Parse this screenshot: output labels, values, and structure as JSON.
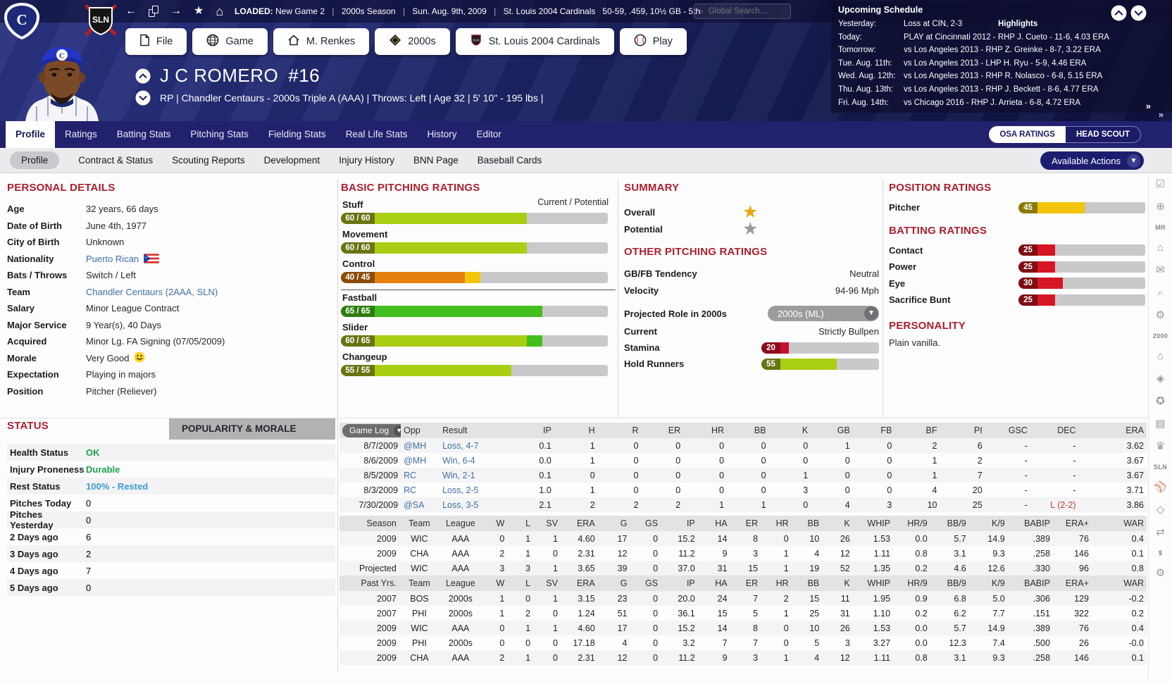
{
  "topbar": {
    "loaded_label": "LOADED:",
    "loaded_value": "New Game 2",
    "sep": "|",
    "season": "2000s  Season",
    "date": "Sun. Aug. 9th, 2009",
    "team": "St. Louis 2004 Cardinals",
    "record": "50-59, .459, 10½ GB - 5th",
    "search_placeholder": "Global Search..."
  },
  "schedule": {
    "title": "Upcoming Schedule",
    "highlights_label": "Highlights",
    "rows": [
      {
        "label": "Yesterday:",
        "text": "Loss at CIN, 2-3",
        "highlights": true
      },
      {
        "label": "Today:",
        "text": "PLAY at Cincinnati 2012 - RHP J. Cueto - 11-6, 4.03 ERA"
      },
      {
        "label": "Tomorrow:",
        "text": "vs Los Angeles 2013 - RHP Z. Greinke - 8-7, 3.22 ERA"
      },
      {
        "label": "Tue. Aug. 11th:",
        "text": "vs Los Angeles 2013 - LHP H. Ryu - 5-9, 4.46 ERA"
      },
      {
        "label": "Wed. Aug. 12th:",
        "text": "vs Los Angeles 2013 - RHP R. Nolasco - 6-8, 5.15 ERA"
      },
      {
        "label": "Thu. Aug. 13th:",
        "text": "vs Los Angeles 2013 - RHP J. Beckett - 8-6, 4.77 ERA"
      },
      {
        "label": "Fri. Aug. 14th:",
        "text": "vs Chicago 2016 - RHP J. Arrieta - 6-8, 4.72 ERA"
      }
    ]
  },
  "breadcrumbs": [
    {
      "label": "File",
      "icon": "file"
    },
    {
      "label": "Game",
      "icon": "globe"
    },
    {
      "label": "M. Renkes",
      "icon": "home"
    },
    {
      "label": "2000s",
      "icon": "league"
    },
    {
      "label": "St. Louis 2004 Cardinals",
      "icon": "team"
    },
    {
      "label": "Play",
      "icon": "play"
    }
  ],
  "player": {
    "name": "J C ROMERO",
    "number": "#16",
    "info": "RP | Chandler Centaurs - 2000s  Triple A (AAA)  |  Throws: Left  |  Age 32  |  5' 10\" - 195 lbs  |"
  },
  "tabs": {
    "main": [
      "Profile",
      "Ratings",
      "Batting Stats",
      "Pitching Stats",
      "Fielding Stats",
      "Real Life Stats",
      "History",
      "Editor"
    ],
    "active_main": "Profile",
    "scout_toggle": [
      "OSA RATINGS",
      "HEAD SCOUT"
    ],
    "active_scout": "OSA RATINGS",
    "sub": [
      "Profile",
      "Contract & Status",
      "Scouting Reports",
      "Development",
      "Injury History",
      "BNN Page",
      "Baseball Cards"
    ],
    "active_sub": "Profile",
    "actions_label": "Available Actions"
  },
  "personal": {
    "title": "PERSONAL DETAILS",
    "rows": [
      {
        "label": "Age",
        "value": "32 years, 66 days"
      },
      {
        "label": "Date of Birth",
        "value": "June 4th, 1977"
      },
      {
        "label": "City of Birth",
        "value": "Unknown"
      },
      {
        "label": "Nationality",
        "value": "Puerto Rican",
        "style": "link",
        "flag": true
      },
      {
        "label": "Bats / Throws",
        "value": "Switch / Left"
      },
      {
        "label": "Team",
        "value": "Chandler Centaurs (2AAA, SLN)",
        "style": "link"
      },
      {
        "label": "Salary",
        "value": "Minor League Contract"
      },
      {
        "label": "Major Service",
        "value": "9 Year(s), 40 Days"
      },
      {
        "label": "Acquired",
        "value": "Minor Lg. FA Signing (07/05/2009)"
      },
      {
        "label": "Morale",
        "value": "Very Good",
        "smiley": true
      },
      {
        "label": "Expectation",
        "value": "Playing in majors"
      },
      {
        "label": "Position",
        "value": "Pitcher (Reliever)"
      }
    ]
  },
  "pitching": {
    "title": "BASIC PITCHING RATINGS",
    "scale_label": "Current / Potential",
    "bars": [
      {
        "label": "Stuff",
        "badge": "60 / 60",
        "current": 60,
        "potential": 60,
        "fill": "#a8cf13",
        "pot_fill": "#a8cf13",
        "badge_color": "#6a7413"
      },
      {
        "label": "Movement",
        "badge": "60 / 60",
        "current": 60,
        "potential": 60,
        "fill": "#a8cf13",
        "pot_fill": "#a8cf13",
        "badge_color": "#6a7413"
      },
      {
        "label": "Control",
        "badge": "40 / 45",
        "current": 40,
        "potential": 45,
        "fill": "#e4820f",
        "pot_fill": "#f2c40c",
        "badge_color": "#8a4d0a",
        "divider_after": true
      },
      {
        "label": "Fastball",
        "badge": "65 / 65",
        "current": 65,
        "potential": 65,
        "fill": "#43bf1d",
        "pot_fill": "#43bf1d",
        "badge_color": "#2f7d10"
      },
      {
        "label": "Slider",
        "badge": "60 / 65",
        "current": 60,
        "potential": 65,
        "fill": "#a8cf13",
        "pot_fill": "#43bf1d",
        "badge_color": "#6a7413"
      },
      {
        "label": "Changeup",
        "badge": "55 / 55",
        "current": 55,
        "potential": 55,
        "fill": "#a8cf13",
        "pot_fill": "#a8cf13",
        "badge_color": "#6a7413"
      }
    ]
  },
  "summary": {
    "title": "SUMMARY",
    "overall_label": "Overall",
    "potential_label": "Potential",
    "overall_stars": 1,
    "potential_stars": 1,
    "star_gold": "#e8a712",
    "star_gray": "#9a9a9a",
    "other_title": "OTHER PITCHING RATINGS",
    "rows": [
      {
        "label": "GB/FB Tendency",
        "value": "Neutral"
      },
      {
        "label": "Velocity",
        "value": "94-96 Mph"
      }
    ],
    "projected_label": "Projected Role in 2000s",
    "projected_value": "2000s  (ML)",
    "current_label": "Current",
    "current_value": "Strictly Bullpen",
    "bars": [
      {
        "label": "Stamina",
        "badge": "20",
        "current": 20,
        "potential": 20,
        "fill": "#c8102e",
        "pot_fill": "#c8102e",
        "badge_color": "#8c0c1c"
      },
      {
        "label": "Hold Runners",
        "badge": "55",
        "current": 55,
        "potential": 55,
        "fill": "#a8cf13",
        "pot_fill": "#a8cf13",
        "badge_color": "#6a7413"
      }
    ]
  },
  "position": {
    "title": "POSITION RATINGS",
    "bars": [
      {
        "label": "Pitcher",
        "badge": "45",
        "current": 45,
        "potential": 45,
        "fill": "#f2c40c",
        "pot_fill": "#f2c40c",
        "badge_color": "#8a7a0a"
      }
    ]
  },
  "batting": {
    "title": "BATTING RATINGS",
    "bars": [
      {
        "label": "Contact",
        "badge": "25",
        "current": 25,
        "potential": 25,
        "fill": "#d61624",
        "pot_fill": "#d61624",
        "badge_color": "#7e0d14"
      },
      {
        "label": "Power",
        "badge": "25",
        "current": 25,
        "potential": 25,
        "fill": "#d61624",
        "pot_fill": "#d61624",
        "badge_color": "#7e0d14"
      },
      {
        "label": "Eye",
        "badge": "30",
        "current": 30,
        "potential": 30,
        "fill": "#d61624",
        "pot_fill": "#d61624",
        "badge_color": "#7e0d14"
      },
      {
        "label": "Sacrifice Bunt",
        "badge": "25",
        "current": 25,
        "potential": 25,
        "fill": "#d61624",
        "pot_fill": "#d61624",
        "badge_color": "#7e0d14"
      }
    ]
  },
  "personality": {
    "title": "PERSONALITY",
    "text": "Plain vanilla."
  },
  "status": {
    "title": "STATUS",
    "morale_tab": "POPULARITY & MORALE",
    "rows": [
      {
        "label": "Health Status",
        "value": "OK",
        "style": "green"
      },
      {
        "label": "Injury Proneness",
        "value": "Durable",
        "style": "green"
      },
      {
        "label": "Rest Status",
        "value": "100% - Rested",
        "style": "blue"
      },
      {
        "label": "Pitches Today",
        "value": "0"
      },
      {
        "label": "Pitches Yesterday",
        "value": "0"
      },
      {
        "label": "2 Days ago",
        "value": "6"
      },
      {
        "label": "3 Days ago",
        "value": "2"
      },
      {
        "label": "4 Days ago",
        "value": "7"
      },
      {
        "label": "5 Days ago",
        "value": "0"
      }
    ]
  },
  "gamelog": {
    "dropdown_label": "Game Log",
    "headers": [
      "",
      "Opp",
      "Result",
      "IP",
      "H",
      "R",
      "ER",
      "HR",
      "BB",
      "K",
      "GB",
      "FB",
      "BF",
      "PI",
      "GSC",
      "DEC",
      "ERA"
    ],
    "rows": [
      [
        "8/7/2009",
        "@MH",
        "Loss, 4-7",
        "0.1",
        "1",
        "0",
        "0",
        "0",
        "0",
        "0",
        "1",
        "0",
        "2",
        "6",
        "-",
        "-",
        "3.62"
      ],
      [
        "8/6/2009",
        "@MH",
        "Win, 6-4",
        "0.0",
        "1",
        "0",
        "0",
        "0",
        "0",
        "0",
        "0",
        "0",
        "1",
        "2",
        "-",
        "-",
        "3.67"
      ],
      [
        "8/5/2009",
        "RC",
        "Win, 2-1",
        "0.1",
        "0",
        "0",
        "0",
        "0",
        "0",
        "1",
        "0",
        "0",
        "1",
        "7",
        "-",
        "-",
        "3.67"
      ],
      [
        "8/3/2009",
        "RC",
        "Loss, 2-5",
        "1.0",
        "1",
        "0",
        "0",
        "0",
        "0",
        "3",
        "0",
        "0",
        "4",
        "20",
        "-",
        "-",
        "3.71"
      ],
      [
        "7/30/2009",
        "@SA",
        "Loss, 3-5",
        "2.1",
        "2",
        "2",
        "2",
        "1",
        "1",
        "0",
        "4",
        "3",
        "10",
        "25",
        "-",
        "L (2-2)",
        "3.86"
      ]
    ]
  },
  "season_stats": {
    "headers": [
      "Season",
      "Team",
      "League",
      "W",
      "L",
      "SV",
      "ERA",
      "G",
      "GS",
      "IP",
      "HA",
      "ER",
      "HR",
      "BB",
      "K",
      "WHIP",
      "HR/9",
      "BB/9",
      "K/9",
      "BABIP",
      "ERA+",
      "WAR"
    ],
    "rows": [
      [
        "2009",
        "WIC",
        "AAA",
        "0",
        "1",
        "1",
        "4.60",
        "17",
        "0",
        "15.2",
        "14",
        "8",
        "0",
        "10",
        "26",
        "1.53",
        "0.0",
        "5.7",
        "14.9",
        ".389",
        "76",
        "0.4"
      ],
      [
        "2009",
        "CHA",
        "AAA",
        "2",
        "1",
        "0",
        "2.31",
        "12",
        "0",
        "11.2",
        "9",
        "3",
        "1",
        "4",
        "12",
        "1.11",
        "0.8",
        "3.1",
        "9.3",
        ".258",
        "146",
        "0.1"
      ],
      [
        "Projected",
        "WIC",
        "AAA",
        "3",
        "3",
        "1",
        "3.65",
        "39",
        "0",
        "37.0",
        "31",
        "15",
        "1",
        "19",
        "52",
        "1.35",
        "0.2",
        "4.6",
        "12.6",
        ".330",
        "96",
        "0.8"
      ]
    ]
  },
  "past_stats": {
    "headers": [
      "Past Yrs.",
      "Team",
      "League",
      "W",
      "L",
      "SV",
      "ERA",
      "G",
      "GS",
      "IP",
      "HA",
      "ER",
      "HR",
      "BB",
      "K",
      "WHIP",
      "HR/9",
      "BB/9",
      "K/9",
      "BABIP",
      "ERA+",
      "WAR"
    ],
    "rows": [
      [
        "2007",
        "BOS",
        "2000s",
        "1",
        "0",
        "1",
        "3.15",
        "23",
        "0",
        "20.0",
        "24",
        "7",
        "2",
        "15",
        "11",
        "1.95",
        "0.9",
        "6.8",
        "5.0",
        ".306",
        "129",
        "-0.2"
      ],
      [
        "2007",
        "PHI",
        "2000s",
        "1",
        "2",
        "0",
        "1.24",
        "51",
        "0",
        "36.1",
        "15",
        "5",
        "1",
        "25",
        "31",
        "1.10",
        "0.2",
        "6.2",
        "7.7",
        ".151",
        "322",
        "0.2"
      ],
      [
        "2009",
        "WIC",
        "AAA",
        "0",
        "1",
        "1",
        "4.60",
        "17",
        "0",
        "15.2",
        "14",
        "8",
        "0",
        "10",
        "26",
        "1.53",
        "0.0",
        "5.7",
        "14.9",
        ".389",
        "76",
        "0.4"
      ],
      [
        "2009",
        "PHI",
        "2000s",
        "0",
        "0",
        "0",
        "17.18",
        "4",
        "0",
        "3.2",
        "7",
        "7",
        "0",
        "5",
        "3",
        "3.27",
        "0.0",
        "12.3",
        "7.4",
        ".500",
        "26",
        "-0.0"
      ],
      [
        "2009",
        "CHA",
        "AAA",
        "2",
        "1",
        "0",
        "2.31",
        "12",
        "0",
        "11.2",
        "9",
        "3",
        "1",
        "4",
        "12",
        "1.11",
        "0.8",
        "3.1",
        "9.3",
        ".258",
        "146",
        "0.1"
      ]
    ]
  },
  "sidebar": {
    "items": [
      {
        "glyph": "☑",
        "name": "checklist-icon"
      },
      {
        "glyph": "⊕",
        "name": "globe-icon"
      },
      {
        "text": "MR",
        "name": "manager-badge"
      },
      {
        "glyph": "⌂",
        "name": "home-icon"
      },
      {
        "glyph": "✉",
        "name": "mail-icon"
      },
      {
        "glyph": "⌕",
        "name": "search-icon"
      },
      {
        "glyph": "⚙",
        "name": "settings-icon"
      },
      {
        "text": "2000",
        "name": "league-badge"
      },
      {
        "glyph": "⌂",
        "name": "team-home-icon"
      },
      {
        "glyph": "◈",
        "name": "field-icon"
      },
      {
        "glyph": "✪",
        "name": "award-icon"
      },
      {
        "glyph": "▤",
        "name": "news-icon"
      },
      {
        "glyph": "♛",
        "name": "trophy-icon"
      },
      {
        "text": "SLN",
        "name": "sln-badge"
      },
      {
        "glyph": "⚾",
        "name": "baseball-icon"
      },
      {
        "glyph": "◇",
        "name": "diamond-icon"
      },
      {
        "glyph": "⇄",
        "name": "transactions-icon"
      },
      {
        "text": "$",
        "name": "finance-badge"
      },
      {
        "glyph": "⚙",
        "name": "options-icon"
      }
    ]
  }
}
